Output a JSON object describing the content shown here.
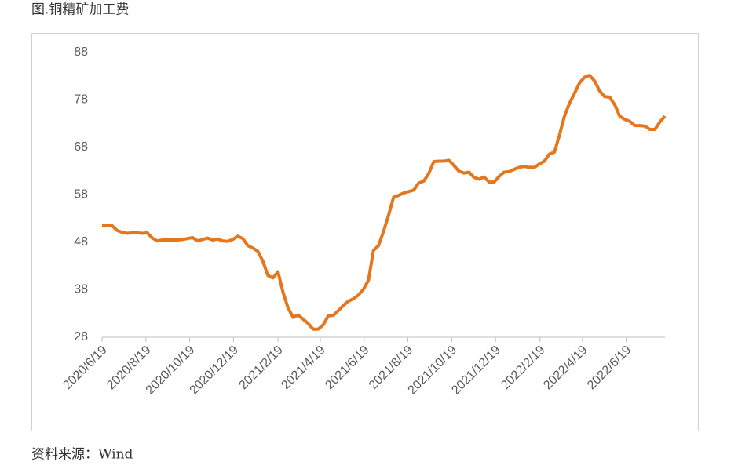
{
  "chart_data": {
    "type": "line",
    "title": "图.铜精矿加工费",
    "source": "资料来源：Wind",
    "x": [
      "2020-06-19",
      "2020-06-26",
      "2020-07-03",
      "2020-07-10",
      "2020-07-17",
      "2020-07-24",
      "2020-07-31",
      "2020-08-07",
      "2020-08-14",
      "2020-08-21",
      "2020-08-28",
      "2020-09-04",
      "2020-09-11",
      "2020-09-18",
      "2020-09-25",
      "2020-10-02",
      "2020-10-09",
      "2020-10-16",
      "2020-10-23",
      "2020-10-30",
      "2020-11-06",
      "2020-11-13",
      "2020-11-20",
      "2020-11-27",
      "2020-12-04",
      "2020-12-11",
      "2020-12-18",
      "2020-12-25",
      "2021-01-01",
      "2021-01-08",
      "2021-01-15",
      "2021-01-22",
      "2021-01-29",
      "2021-02-05",
      "2021-02-12",
      "2021-02-19",
      "2021-02-26",
      "2021-03-05",
      "2021-03-12",
      "2021-03-19",
      "2021-03-26",
      "2021-04-02",
      "2021-04-09",
      "2021-04-16",
      "2021-04-23",
      "2021-04-30",
      "2021-05-07",
      "2021-05-14",
      "2021-05-21",
      "2021-05-28",
      "2021-06-04",
      "2021-06-11",
      "2021-06-18",
      "2021-06-25",
      "2021-07-02",
      "2021-07-09",
      "2021-07-16",
      "2021-07-23",
      "2021-07-30",
      "2021-08-06",
      "2021-08-13",
      "2021-08-20",
      "2021-08-27",
      "2021-09-03",
      "2021-09-10",
      "2021-09-17",
      "2021-09-24",
      "2021-10-01",
      "2021-10-08",
      "2021-10-15",
      "2021-10-22",
      "2021-10-29",
      "2021-11-05",
      "2021-11-12",
      "2021-11-19",
      "2021-11-26",
      "2021-12-03",
      "2021-12-10",
      "2021-12-17",
      "2021-12-24",
      "2021-12-31",
      "2022-01-07",
      "2022-01-14",
      "2022-01-21",
      "2022-01-28",
      "2022-02-04",
      "2022-02-11",
      "2022-02-18",
      "2022-02-25",
      "2022-03-04",
      "2022-03-11",
      "2022-03-18",
      "2022-03-25",
      "2022-04-01",
      "2022-04-08",
      "2022-04-15",
      "2022-04-22",
      "2022-04-29",
      "2022-05-06",
      "2022-05-13",
      "2022-05-20",
      "2022-05-27",
      "2022-06-03",
      "2022-06-10",
      "2022-06-17",
      "2022-06-24",
      "2022-07-01",
      "2022-07-08",
      "2022-07-15",
      "2022-07-22",
      "2022-07-29",
      "2022-08-05",
      "2022-08-12"
    ],
    "series": [
      {
        "name": "铜精矿加工费",
        "color": "#e4761e",
        "values": [
          51.5,
          51.5,
          51.5,
          50.5,
          50.1,
          49.9,
          50,
          50,
          49.9,
          50,
          48.9,
          48.3,
          48.5,
          48.5,
          48.5,
          48.5,
          48.6,
          48.8,
          49,
          48.3,
          48.6,
          48.9,
          48.5,
          48.7,
          48.3,
          48.2,
          48.6,
          49.3,
          48.8,
          47.3,
          46.8,
          46.1,
          44,
          41,
          40.5,
          41.8,
          37.5,
          34.2,
          32.2,
          32.7,
          31.8,
          30.9,
          29.7,
          29.7,
          30.6,
          32.5,
          32.6,
          33.6,
          34.7,
          35.6,
          36.1,
          36.9,
          38.1,
          40,
          46.3,
          47.3,
          50.3,
          53.7,
          57.5,
          57.9,
          58.4,
          58.7,
          59,
          60.5,
          60.9,
          62.5,
          65,
          65.1,
          65.1,
          65.3,
          64.2,
          63,
          62.6,
          62.8,
          61.7,
          61.3,
          61.8,
          60.7,
          60.7,
          61.9,
          62.8,
          62.9,
          63.4,
          63.8,
          64,
          63.8,
          63.8,
          64.5,
          65.1,
          66.6,
          67,
          70.6,
          74.6,
          77.3,
          79.4,
          81.6,
          82.8,
          83.2,
          82,
          79.9,
          78.7,
          78.6,
          77,
          74.6,
          73.9,
          73.5,
          72.6,
          72.6,
          72.5,
          71.8,
          71.8,
          73.4,
          74.6
        ]
      }
    ],
    "xlim": [
      "2020-06-19",
      "2022-08-12"
    ],
    "xticks": [
      {
        "value": "2020-06-19",
        "label": "2020/6/19"
      },
      {
        "value": "2020-08-19",
        "label": "2020/8/19"
      },
      {
        "value": "2020-10-19",
        "label": "2020/10/19"
      },
      {
        "value": "2020-12-19",
        "label": "2020/12/19"
      },
      {
        "value": "2021-02-19",
        "label": "2021/2/19"
      },
      {
        "value": "2021-04-19",
        "label": "2021/4/19"
      },
      {
        "value": "2021-06-19",
        "label": "2021/6/19"
      },
      {
        "value": "2021-08-19",
        "label": "2021/8/19"
      },
      {
        "value": "2021-10-19",
        "label": "2021/10/19"
      },
      {
        "value": "2021-12-19",
        "label": "2021/12/19"
      },
      {
        "value": "2022-02-19",
        "label": "2022/2/19"
      },
      {
        "value": "2022-04-19",
        "label": "2022/4/19"
      },
      {
        "value": "2022-06-19",
        "label": "2022/6/19"
      }
    ],
    "ylim": [
      28,
      88
    ],
    "yticks": [
      28,
      38,
      48,
      58,
      68,
      78,
      88
    ]
  }
}
